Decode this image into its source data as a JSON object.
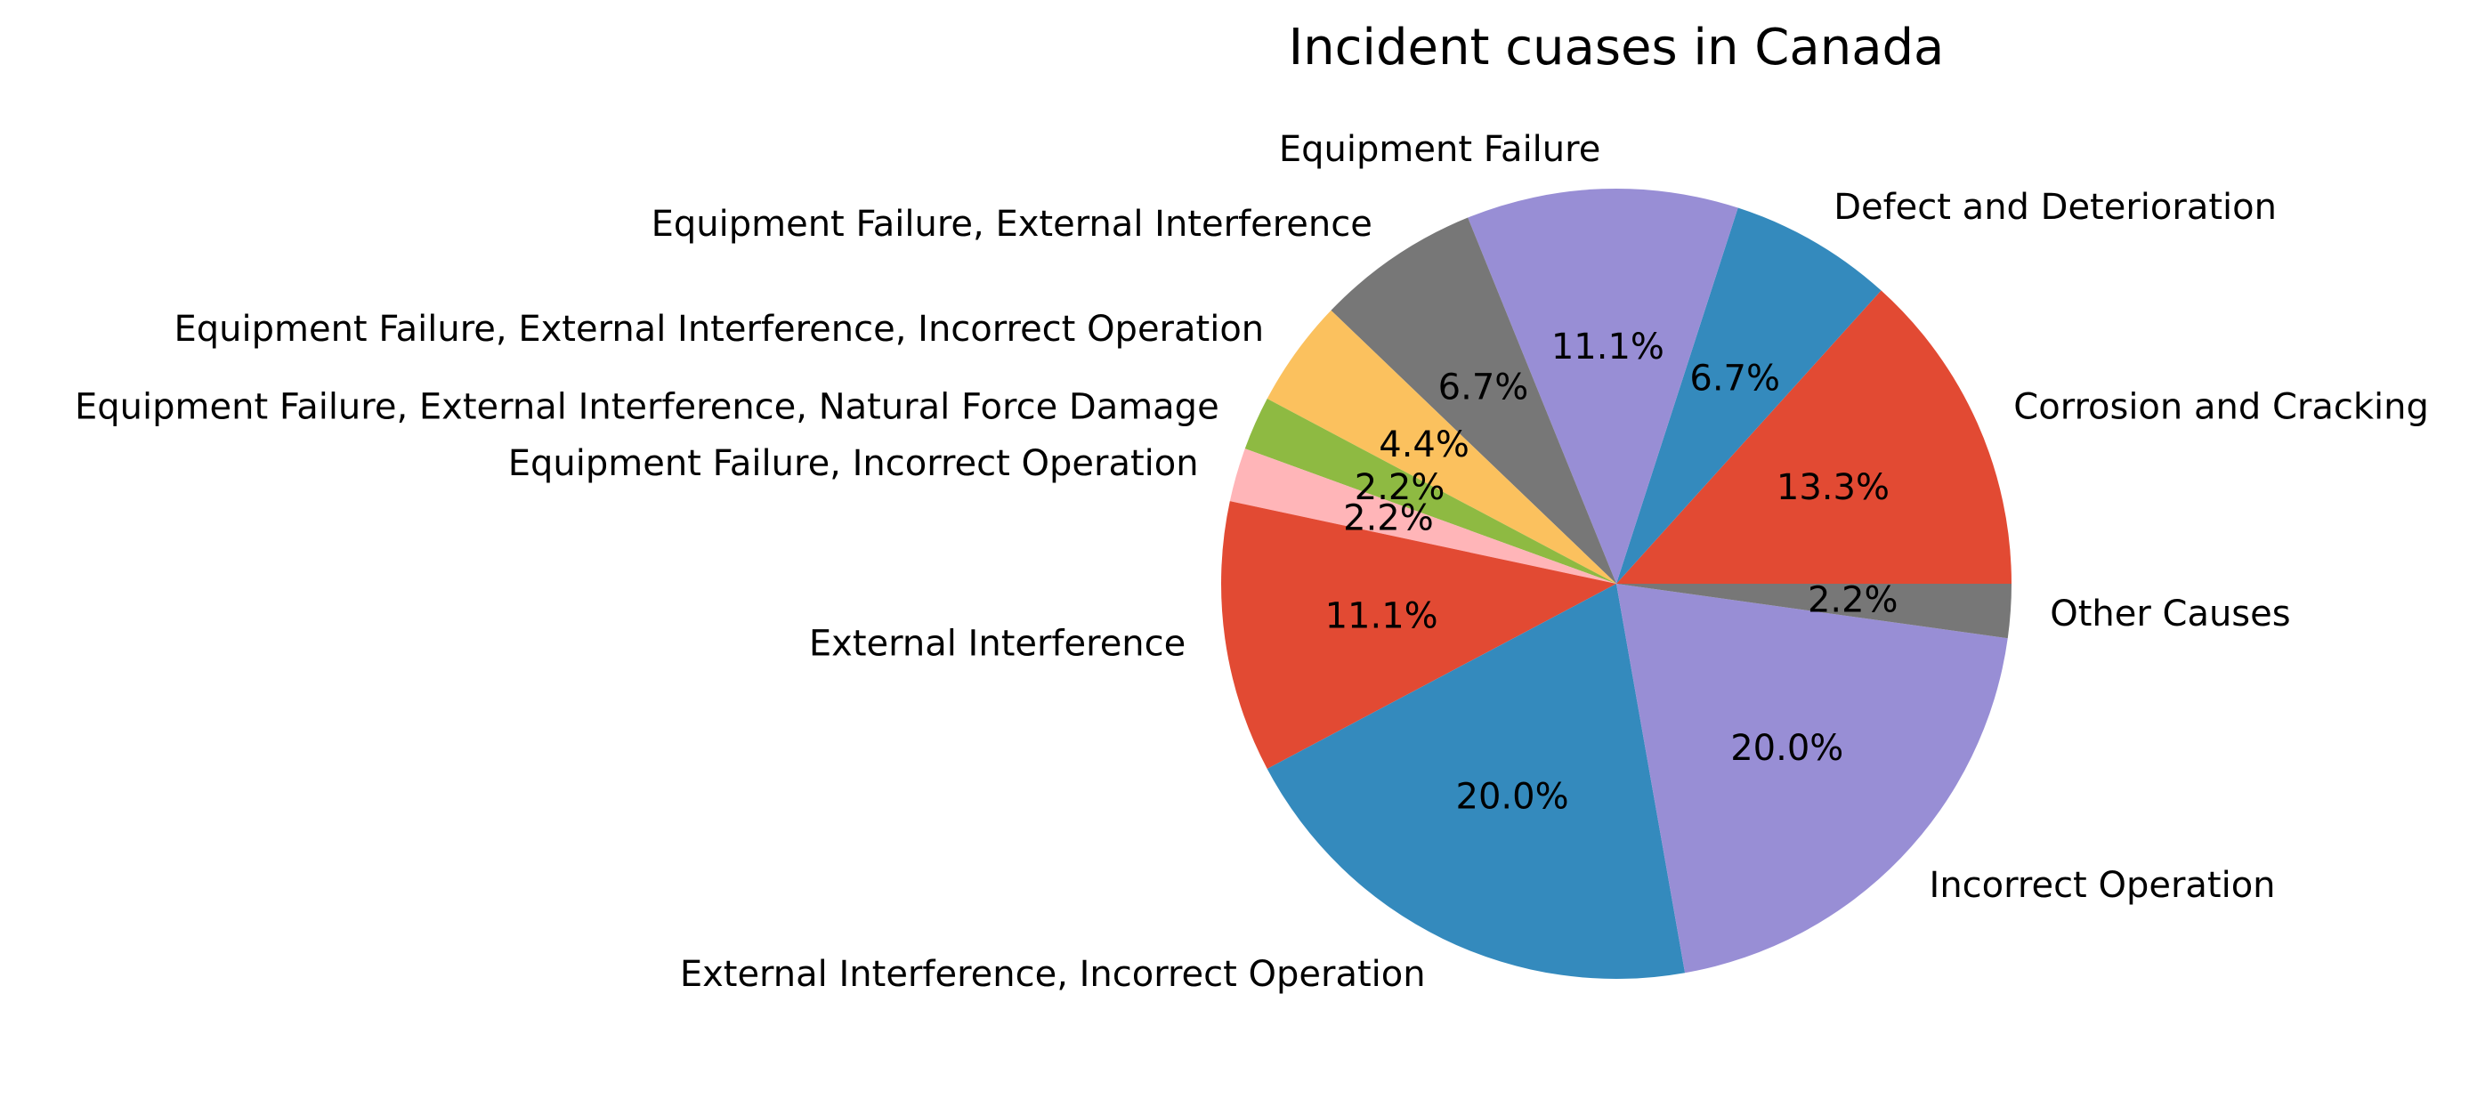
{
  "chart_data": {
    "type": "pie",
    "title": "Incident cuases in Canada",
    "slices": [
      {
        "label": "Corrosion and Cracking",
        "value": 13.3,
        "pct_text": "13.3%",
        "color": "#E24A33"
      },
      {
        "label": "Defect and Deterioration",
        "value": 6.7,
        "pct_text": "6.7%",
        "color": "#348ABD"
      },
      {
        "label": "Equipment Failure",
        "value": 11.1,
        "pct_text": "11.1%",
        "color": "#988ED5"
      },
      {
        "label": "Equipment Failure, External Interference",
        "value": 6.7,
        "pct_text": "6.7%",
        "color": "#777777"
      },
      {
        "label": "Equipment Failure, External Interference, Incorrect Operation",
        "value": 4.4,
        "pct_text": "4.4%",
        "color": "#FBC15E"
      },
      {
        "label": "Equipment Failure, External Interference, Natural Force Damage",
        "value": 2.2,
        "pct_text": "2.2%",
        "color": "#8EBA42"
      },
      {
        "label": "Equipment Failure, Incorrect Operation",
        "value": 2.2,
        "pct_text": "2.2%",
        "color": "#FFB5B8"
      },
      {
        "label": "External Interference",
        "value": 11.1,
        "pct_text": "11.1%",
        "color": "#E24A33"
      },
      {
        "label": "External Interference, Incorrect Operation",
        "value": 20.0,
        "pct_text": "20.0%",
        "color": "#348ABD"
      },
      {
        "label": "Incorrect Operation",
        "value": 20.0,
        "pct_text": "20.0%",
        "color": "#988ED5"
      },
      {
        "label": "Other Causes",
        "value": 2.2,
        "pct_text": "2.2%",
        "color": "#777777"
      }
    ],
    "start_angle_deg": 0,
    "direction": "counterclockwise",
    "legend": "none"
  }
}
